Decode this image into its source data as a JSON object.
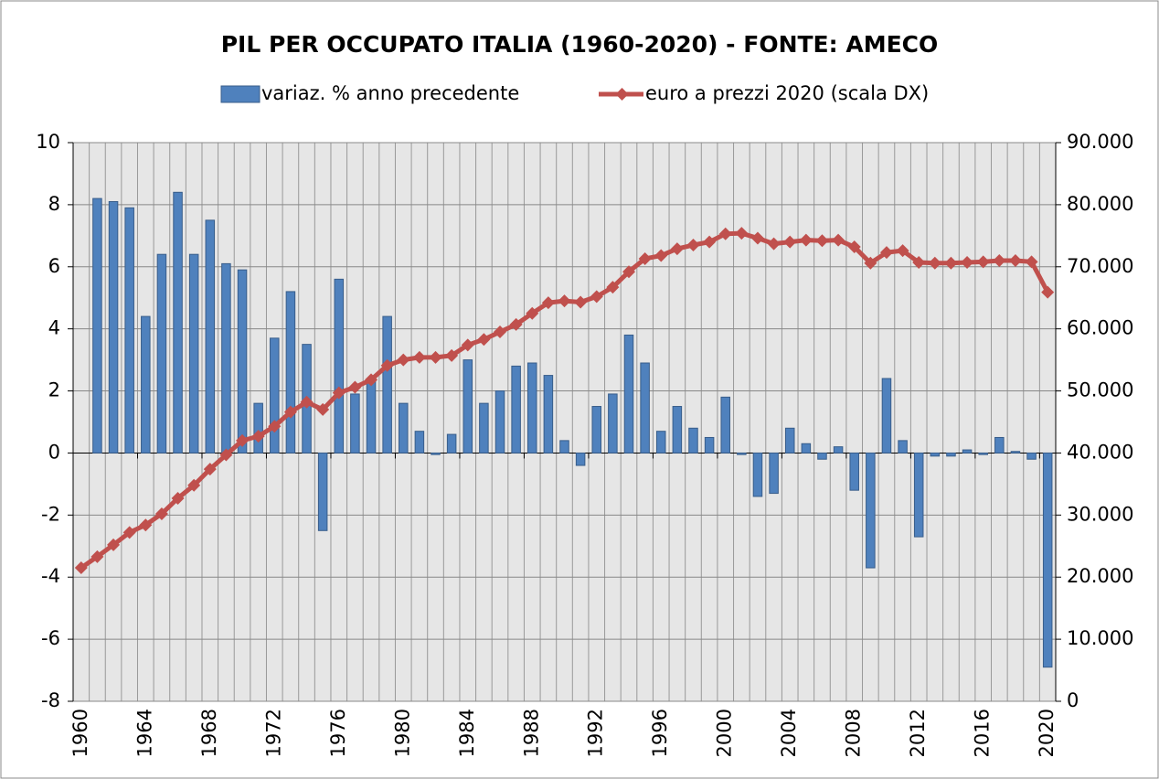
{
  "chart_data": {
    "type": "bar-line",
    "title": "PIL PER OCCUPATO ITALIA (1960-2020)  - FONTE: AMECO",
    "categories": [
      "1960",
      null,
      null,
      null,
      "1964",
      null,
      null,
      null,
      "1968",
      null,
      null,
      null,
      "1972",
      null,
      null,
      null,
      "1976",
      null,
      null,
      null,
      "1980",
      null,
      null,
      null,
      "1984",
      null,
      null,
      null,
      "1988",
      null,
      null,
      null,
      "1992",
      null,
      null,
      null,
      "1996",
      null,
      null,
      null,
      "2000",
      null,
      null,
      null,
      "2004",
      null,
      null,
      null,
      "2008",
      null,
      null,
      null,
      "2012",
      null,
      null,
      null,
      "2016",
      null,
      null,
      null,
      "2020"
    ],
    "series": [
      {
        "name": "variaz. % anno precedente",
        "color": "#4f81bd",
        "type": "bar",
        "values": [
          null,
          8.2,
          8.1,
          7.9,
          4.4,
          6.4,
          8.4,
          6.4,
          7.5,
          6.1,
          5.9,
          1.6,
          3.7,
          5.2,
          3.5,
          -2.5,
          5.6,
          1.9,
          2.4,
          4.4,
          1.6,
          0.7,
          -0.05,
          0.6,
          3.0,
          1.6,
          2.0,
          2.8,
          2.9,
          2.5,
          0.4,
          -0.4,
          1.5,
          1.9,
          3.8,
          2.9,
          0.7,
          1.5,
          0.8,
          0.5,
          1.8,
          -0.05,
          -1.4,
          -1.3,
          0.8,
          0.3,
          -0.2,
          0.2,
          -1.2,
          -3.7,
          2.4,
          0.4,
          -2.7,
          -0.1,
          -0.1,
          0.1,
          -0.05,
          0.5,
          0.05,
          -0.2,
          -6.9
        ]
      },
      {
        "name": "euro a prezzi 2020 (scala DX)",
        "color": "#c0504d",
        "type": "line",
        "axis": "y2",
        "values": [
          21500,
          23300,
          25200,
          27200,
          28400,
          30200,
          32700,
          34800,
          37400,
          39700,
          42000,
          42700,
          44300,
          46600,
          48200,
          47000,
          49700,
          50600,
          51800,
          54100,
          55000,
          55400,
          55400,
          55700,
          57400,
          58300,
          59500,
          60700,
          62500,
          64200,
          64500,
          64300,
          65200,
          66700,
          69200,
          71300,
          71800,
          72900,
          73500,
          74000,
          75300,
          75400,
          74600,
          73700,
          74000,
          74300,
          74200,
          74300,
          73200,
          70600,
          72300,
          72600,
          70700,
          70600,
          70600,
          70700,
          70800,
          71000,
          71000,
          70800,
          65900
        ]
      }
    ],
    "ylim": [
      -8,
      10
    ],
    "yticks": [
      -8,
      -6,
      -4,
      -2,
      0,
      2,
      4,
      6,
      8,
      10
    ],
    "y2lim": [
      0,
      90000
    ],
    "y2ticks": [
      0,
      {
        "value": 10000,
        "label": "10.000"
      },
      {
        "value": 20000,
        "label": "20.000"
      },
      {
        "value": 30000,
        "label": "30.000"
      },
      {
        "value": 40000,
        "label": "40.000"
      },
      {
        "value": 50000,
        "label": "50.000"
      },
      {
        "value": 60000,
        "label": "60.000"
      },
      {
        "value": 70000,
        "label": "70.000"
      },
      {
        "value": 80000,
        "label": "80.000"
      },
      {
        "value": 90000,
        "label": "90.000"
      }
    ],
    "grid": true
  }
}
